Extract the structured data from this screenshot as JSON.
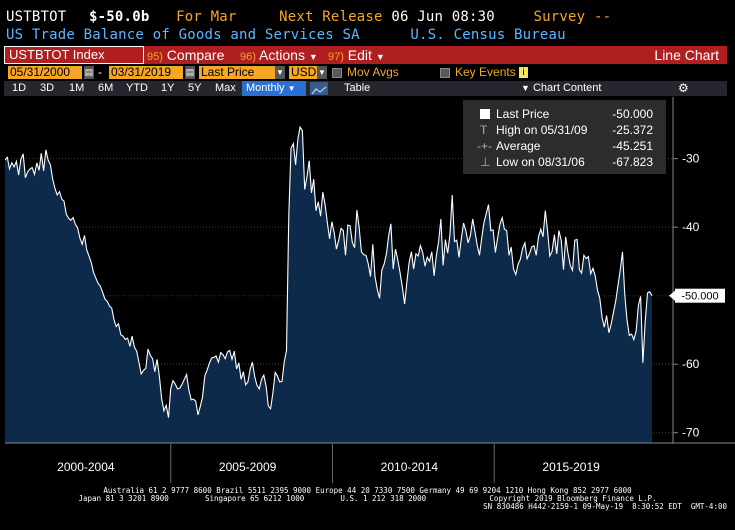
{
  "header": {
    "ticker": "USTBTOT",
    "value": "$-50.0b",
    "period": "For Mar",
    "next_release_label": "Next Release",
    "next_release_value": "06 Jun 08:30",
    "survey_label": "Survey",
    "survey_value": "--",
    "series_name": "US Trade Balance of Goods and Services SA",
    "source": "U.S. Census Bureau"
  },
  "titlebar": {
    "index": "USTBTOT Index",
    "compare_num": "95)",
    "compare": "Compare",
    "actions_num": "96)",
    "actions": "Actions",
    "edit_num": "97)",
    "edit": "Edit",
    "chart_type": "Line Chart"
  },
  "params": {
    "start_date": "05/31/2000",
    "end_date": "03/31/2019",
    "field": "Last Price",
    "currency": "USD",
    "mov_avgs": "Mov Avgs",
    "key_events": "Key Events"
  },
  "toolbar": {
    "ranges": [
      "1D",
      "3D",
      "1M",
      "6M",
      "YTD",
      "1Y",
      "5Y",
      "Max"
    ],
    "frequency": "Monthly",
    "table": "Table",
    "chart_content": "Chart Content"
  },
  "legend": {
    "last_price_label": "Last Price",
    "last_price_value": "-50.000",
    "high_label": "High on 05/31/09",
    "high_value": "-25.372",
    "average_label": "Average",
    "average_value": "-45.251",
    "low_label": "Low on 08/31/06",
    "low_value": "-67.823"
  },
  "colors": {
    "amber": "#f5a623",
    "titlebar": "#b01f1f",
    "area_fill": "#0d2a4a",
    "line": "#ffffff",
    "toolbar_sel": "#2a6fd3"
  },
  "chart_data": {
    "type": "area",
    "title": "US Trade Balance of Goods and Services SA",
    "xlabel": "",
    "ylabel": "",
    "ylim": [
      -71.5,
      -21
    ],
    "yticks": [
      -30,
      -40,
      -50,
      -60,
      -70
    ],
    "ytick_labels": [
      "-30",
      "-40",
      "-50",
      "-60",
      "-70"
    ],
    "period_labels": [
      "2000-2004",
      "2005-2009",
      "2010-2014",
      "2015-2019"
    ],
    "last_value_label": "-50.000",
    "start": "2000-05",
    "frequency": "monthly",
    "values": [
      -30.2,
      -29.8,
      -31.5,
      -30.6,
      -31.2,
      -30.4,
      -32.4,
      -30.1,
      -29.3,
      -32.8,
      -31.9,
      -31.5,
      -31.3,
      -32.3,
      -30.6,
      -31.7,
      -29.2,
      -31.8,
      -28.7,
      -30.2,
      -30.9,
      -33.0,
      -34.3,
      -35.3,
      -34.8,
      -35.9,
      -36.2,
      -38.1,
      -38.7,
      -39.0,
      -38.6,
      -39.6,
      -40.1,
      -41.6,
      -42.5,
      -41.2,
      -43.3,
      -44.2,
      -45.2,
      -46.6,
      -47.4,
      -48.2,
      -48.6,
      -49.5,
      -50.5,
      -50.8,
      -51.5,
      -51.8,
      -53.5,
      -54.5,
      -54.1,
      -55.7,
      -55.9,
      -56.4,
      -56.2,
      -57.4,
      -55.9,
      -57.5,
      -58.1,
      -59.7,
      -61.4,
      -60.9,
      -60.6,
      -57.8,
      -58.7,
      -59.2,
      -61.1,
      -59.3,
      -61.8,
      -65.0,
      -66.8,
      -66.0,
      -67.8,
      -63.6,
      -62.4,
      -62.9,
      -63.6,
      -63.5,
      -62.9,
      -62.2,
      -61.5,
      -63.8,
      -65.2,
      -65.1,
      -65.4,
      -67.4,
      -66.2,
      -64.8,
      -61.7,
      -60.9,
      -59.9,
      -59.1,
      -59.0,
      -58.8,
      -59.7,
      -58.3,
      -58.6,
      -59.2,
      -58.2,
      -58.0,
      -59.3,
      -58.1,
      -60.7,
      -59.8,
      -62.2,
      -61.1,
      -63.0,
      -62.6,
      -60.7,
      -59.7,
      -61.8,
      -63.1,
      -63.6,
      -62.2,
      -61.6,
      -63.2,
      -66.1,
      -66.5,
      -64.2,
      -61.2,
      -61.7,
      -62.6,
      -62.5,
      -59.7,
      -58.0,
      -38.3,
      -28.5,
      -27.8,
      -30.9,
      -27.1,
      -25.4,
      -25.9,
      -34.5,
      -32.7,
      -30.3,
      -35.0,
      -33.0,
      -37.6,
      -36.3,
      -38.4,
      -34.9,
      -36.7,
      -39.4,
      -41.7,
      -39.2,
      -40.8,
      -43.2,
      -41.9,
      -40.2,
      -40.5,
      -44.1,
      -39.7,
      -39.8,
      -42.2,
      -43.0,
      -37.5,
      -40.0,
      -43.6,
      -44.0,
      -44.1,
      -45.3,
      -47.2,
      -42.5,
      -47.2,
      -49.1,
      -50.4,
      -46.3,
      -45.4,
      -43.9,
      -41.2,
      -39.5,
      -46.1,
      -43.2,
      -44.7,
      -46.6,
      -48.7,
      -51.2,
      -48.1,
      -45.2,
      -43.6,
      -46.1,
      -43.9,
      -44.2,
      -42.7,
      -43.7,
      -45.7,
      -44.4,
      -45.0,
      -43.6,
      -47.1,
      -44.2,
      -42.1,
      -38.8,
      -45.6,
      -41.8,
      -43.8,
      -41.0,
      -35.3,
      -42.1,
      -41.9,
      -44.4,
      -41.7,
      -39.4,
      -40.5,
      -42.3,
      -41.2,
      -38.8,
      -40.6,
      -42.6,
      -44.1,
      -41.6,
      -39.3,
      -38.0,
      -36.7,
      -40.5,
      -40.4,
      -43.7,
      -41.6,
      -39.6,
      -38.6,
      -40.3,
      -40.5,
      -44.1,
      -42.9,
      -46.1,
      -46.9,
      -45.4,
      -44.7,
      -43.1,
      -42.3,
      -44.6,
      -43.9,
      -42.9,
      -42.7,
      -44.1,
      -41.4,
      -40.3,
      -41.4,
      -37.6,
      -40.6,
      -44.2,
      -43.5,
      -41.1,
      -43.9,
      -40.5,
      -41.9,
      -46.2,
      -41.4,
      -43.8,
      -45.6,
      -46.3,
      -41.9,
      -41.8,
      -46.2,
      -46.7,
      -44.1,
      -44.6,
      -44.3,
      -46.8,
      -46.0,
      -47.1,
      -49.2,
      -50.4,
      -53.2,
      -54.6,
      -52.9,
      -55.4,
      -54.2,
      -52.5,
      -50.8,
      -48.6,
      -46.3,
      -43.6,
      -49.9,
      -53.5,
      -55.8,
      -55.6,
      -56.4,
      -55.2,
      -51.4,
      -50.1,
      -59.8,
      -53.8,
      -49.6,
      -49.4,
      -50.0
    ]
  },
  "footer": {
    "line1": "Australia 61 2 9777 8600 Brazil 5511 2395 9000 Europe 44 20 7330 7500 Germany 49 69 9204 1210 Hong Kong 852 2977 6000",
    "line2": "Japan 81 3 3201 8900        Singapore 65 6212 1000        U.S. 1 212 318 2000              Copyright 2019 Bloomberg Finance L.P.",
    "line3": "SN 830486 H442-2159-1 09-May-19  8:30:52 EDT  GMT-4:00"
  }
}
